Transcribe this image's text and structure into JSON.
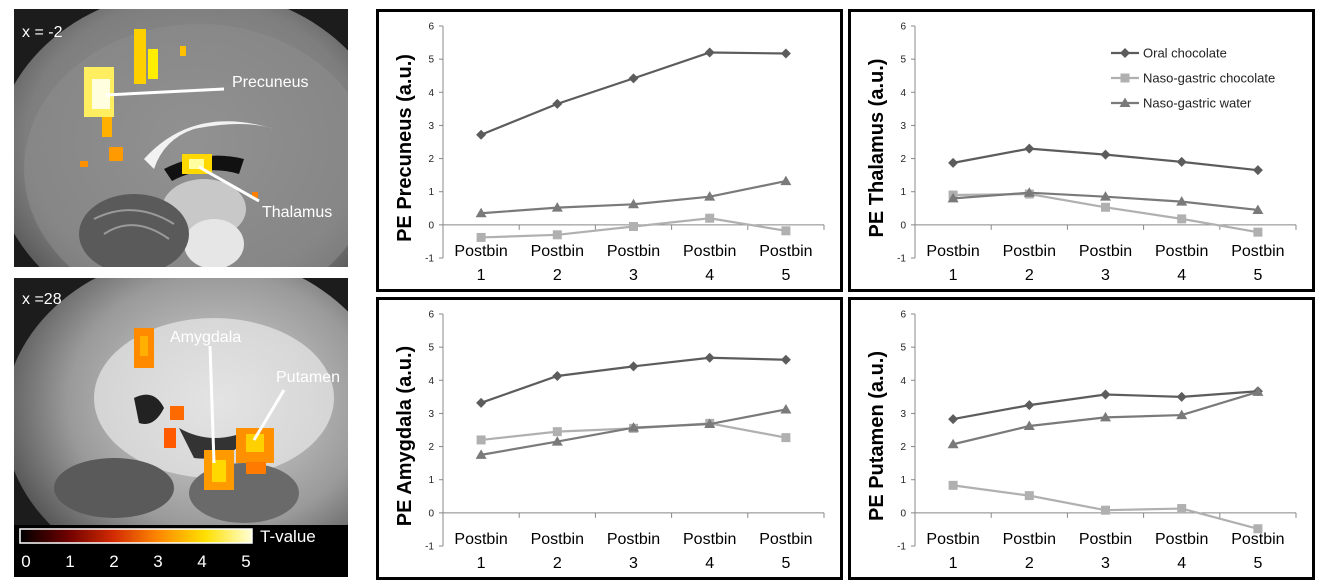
{
  "brain": {
    "top_slice_label": "x = -2",
    "bottom_slice_label": "x =28",
    "top_regions": [
      "Precuneus",
      "Thalamus"
    ],
    "bottom_regions": [
      "Amygdala",
      "Putamen"
    ]
  },
  "colorbar": {
    "label": "T-value",
    "ticks": [
      "0",
      "1",
      "2",
      "3",
      "4",
      "5"
    ],
    "colors": [
      "#000000",
      "#6b0000",
      "#d22a00",
      "#ff8a00",
      "#ffe000",
      "#ffffd8"
    ]
  },
  "legend": {
    "placement": "top-right",
    "entries": [
      "Oral chocolate",
      "Naso-gastric chocolate",
      "Naso-gastric water"
    ]
  },
  "chart_data": [
    {
      "type": "line",
      "ylabel": "PE Precuneus (a.u.)",
      "categories": [
        "Postbin\n1",
        "Postbin\n2",
        "Postbin\n3",
        "Postbin\n4",
        "Postbin\n5"
      ],
      "ylim": [
        -1,
        6
      ],
      "yticks": [
        -1,
        0,
        1,
        2,
        3,
        4,
        5,
        6
      ],
      "series": [
        {
          "name": "Oral chocolate",
          "marker": "diamond",
          "color": "#5c5c5c",
          "values": [
            2.72,
            3.65,
            4.42,
            5.2,
            5.17
          ]
        },
        {
          "name": "Naso-gastric chocolate",
          "marker": "square",
          "color": "#b0b0b0",
          "values": [
            -0.38,
            -0.3,
            -0.05,
            0.2,
            -0.18
          ]
        },
        {
          "name": "Naso-gastric water",
          "marker": "triangle",
          "color": "#7a7a7a",
          "values": [
            0.35,
            0.52,
            0.62,
            0.85,
            1.32
          ]
        }
      ]
    },
    {
      "type": "line",
      "ylabel": "PE Thalamus (a.u.)",
      "categories": [
        "Postbin\n1",
        "Postbin\n2",
        "Postbin\n3",
        "Postbin\n4",
        "Postbin\n5"
      ],
      "ylim": [
        -1,
        6
      ],
      "yticks": [
        -1,
        0,
        1,
        2,
        3,
        4,
        5,
        6
      ],
      "legend": true,
      "series": [
        {
          "name": "Oral chocolate",
          "marker": "diamond",
          "color": "#5c5c5c",
          "values": [
            1.87,
            2.3,
            2.12,
            1.9,
            1.65
          ]
        },
        {
          "name": "Naso-gastric chocolate",
          "marker": "square",
          "color": "#b0b0b0",
          "values": [
            0.9,
            0.93,
            0.53,
            0.18,
            -0.22
          ]
        },
        {
          "name": "Naso-gastric water",
          "marker": "triangle",
          "color": "#7a7a7a",
          "values": [
            0.8,
            0.97,
            0.85,
            0.7,
            0.45
          ]
        }
      ]
    },
    {
      "type": "line",
      "ylabel": "PE Amygdala (a.u.)",
      "categories": [
        "Postbin\n1",
        "Postbin\n2",
        "Postbin\n3",
        "Postbin\n4",
        "Postbin\n5"
      ],
      "ylim": [
        -1,
        6
      ],
      "yticks": [
        -1,
        0,
        1,
        2,
        3,
        4,
        5,
        6
      ],
      "series": [
        {
          "name": "Oral chocolate",
          "marker": "diamond",
          "color": "#5c5c5c",
          "values": [
            3.32,
            4.13,
            4.42,
            4.68,
            4.62
          ]
        },
        {
          "name": "Naso-gastric chocolate",
          "marker": "square",
          "color": "#b0b0b0",
          "values": [
            2.2,
            2.45,
            2.55,
            2.7,
            2.27
          ]
        },
        {
          "name": "Naso-gastric water",
          "marker": "triangle",
          "color": "#7a7a7a",
          "values": [
            1.75,
            2.15,
            2.57,
            2.68,
            3.12
          ]
        }
      ]
    },
    {
      "type": "line",
      "ylabel": "PE Putamen (a.u.)",
      "categories": [
        "Postbin\n1",
        "Postbin\n2",
        "Postbin\n3",
        "Postbin\n4",
        "Postbin\n5"
      ],
      "ylim": [
        -1,
        6
      ],
      "yticks": [
        -1,
        0,
        1,
        2,
        3,
        4,
        5,
        6
      ],
      "series": [
        {
          "name": "Oral chocolate",
          "marker": "diamond",
          "color": "#5c5c5c",
          "values": [
            2.83,
            3.25,
            3.57,
            3.5,
            3.67
          ]
        },
        {
          "name": "Naso-gastric chocolate",
          "marker": "square",
          "color": "#b0b0b0",
          "values": [
            0.83,
            0.52,
            0.08,
            0.13,
            -0.48
          ]
        },
        {
          "name": "Naso-gastric water",
          "marker": "triangle",
          "color": "#7a7a7a",
          "values": [
            2.07,
            2.62,
            2.88,
            2.95,
            3.65
          ]
        }
      ]
    }
  ]
}
